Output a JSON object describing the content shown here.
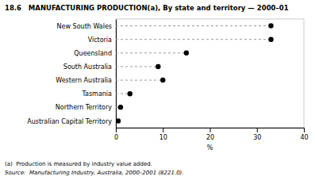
{
  "chart_data": {
    "type": "dot",
    "title": "18.6   MANUFACTURING PRODUCTION(a), By state and territory — 2000–01",
    "orientation": "horizontal",
    "categories": [
      "New South Wales",
      "Victoria",
      "Queensland",
      "South Australia",
      "Western Australia",
      "Tasmania",
      "Northern Territory",
      "Australian Capital Territory"
    ],
    "values": [
      33.0,
      33.0,
      15.0,
      9.0,
      10.0,
      3.0,
      1.0,
      0.5
    ],
    "color": "#000000",
    "line_style": "dashed",
    "xlim": [
      0,
      40
    ],
    "xticks": [
      0,
      10,
      20,
      30,
      40
    ],
    "xlabel": "%",
    "annotations": [
      "(a)  Production is measured by industry value added.",
      "Source:  Manufacturing Industry, Australia, 2000–2001 (8221.0)."
    ],
    "grid": false
  }
}
